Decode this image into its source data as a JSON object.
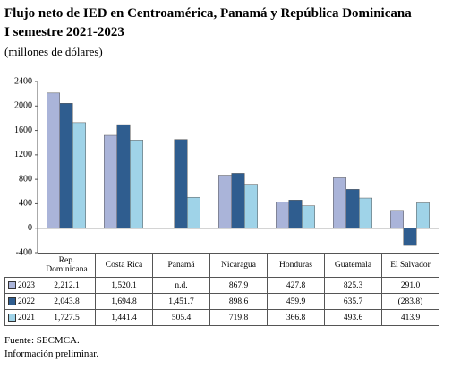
{
  "chart_data": {
    "type": "bar",
    "title": "Flujo neto de IED en Centroamérica, Panamá y República Dominicana",
    "subtitle": "I semestre 2021-2023",
    "unit_label": "(millones de dólares)",
    "categories": [
      "Rep. Dominicana",
      "Costa Rica",
      "Panamá",
      "Nicaragua",
      "Honduras",
      "Guatemala",
      "El Salvador"
    ],
    "series": [
      {
        "name": "2023",
        "color": "#aab4d9",
        "values": [
          2212.1,
          1520.1,
          null,
          867.9,
          427.8,
          825.3,
          291.0
        ],
        "value_labels": [
          "2,212.1",
          "1,520.1",
          "n.d.",
          "867.9",
          "427.8",
          "825.3",
          "291.0"
        ]
      },
      {
        "name": "2022",
        "color": "#2f5d8f",
        "values": [
          2043.8,
          1694.8,
          1451.7,
          898.6,
          459.9,
          635.7,
          -283.8
        ],
        "value_labels": [
          "2,043.8",
          "1,694.8",
          "1,451.7",
          "898.6",
          "459.9",
          "635.7",
          "(283.8)"
        ]
      },
      {
        "name": "2021",
        "color": "#9fd3e8",
        "values": [
          1727.5,
          1441.4,
          505.4,
          719.8,
          366.8,
          493.6,
          413.9
        ],
        "value_labels": [
          "1,727.5",
          "1,441.4",
          "505.4",
          "719.8",
          "366.8",
          "493.6",
          "413.9"
        ]
      }
    ],
    "ylim": [
      -400,
      2400
    ],
    "yticks": [
      -400,
      0,
      400,
      800,
      1200,
      1600,
      2000,
      2400
    ],
    "grid": false
  },
  "notes": [
    "Fuente: SECMCA.",
    "Información preliminar."
  ]
}
